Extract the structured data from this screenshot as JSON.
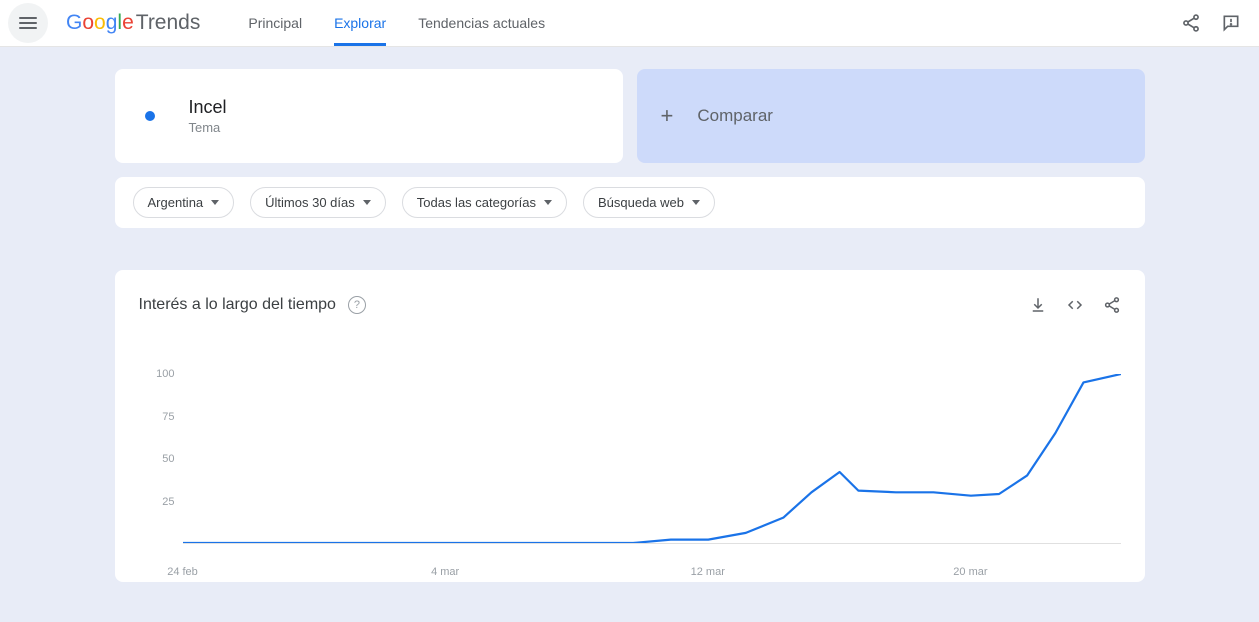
{
  "logo": {
    "brand": "Google",
    "product": "Trends"
  },
  "nav": {
    "items": [
      {
        "label": "Principal"
      },
      {
        "label": "Explorar"
      },
      {
        "label": "Tendencias actuales"
      }
    ],
    "active_index": 1
  },
  "term_card": {
    "title": "Incel",
    "subtitle": "Tema",
    "dot_color": "#1a73e8"
  },
  "compare": {
    "label": "Comparar"
  },
  "filters": [
    {
      "label": "Argentina"
    },
    {
      "label": "Últimos 30 días"
    },
    {
      "label": "Todas las categorías"
    },
    {
      "label": "Búsqueda web"
    }
  ],
  "chart": {
    "type": "line",
    "title": "Interés a lo largo del tiempo",
    "ylim": [
      0,
      100
    ],
    "ytick_step": 25,
    "yticks": [
      25,
      50,
      75,
      100
    ],
    "xlabels": [
      {
        "label": "24 feb",
        "x": 0
      },
      {
        "label": "4 mar",
        "x": 28
      },
      {
        "label": "12 mar",
        "x": 56
      },
      {
        "label": "20 mar",
        "x": 84
      }
    ],
    "x_domain": [
      0,
      100
    ],
    "values": [
      {
        "x": 0,
        "y": 0
      },
      {
        "x": 4,
        "y": 0
      },
      {
        "x": 8,
        "y": 0
      },
      {
        "x": 12,
        "y": 0
      },
      {
        "x": 16,
        "y": 0
      },
      {
        "x": 20,
        "y": 0
      },
      {
        "x": 24,
        "y": 0
      },
      {
        "x": 28,
        "y": 0
      },
      {
        "x": 32,
        "y": 0
      },
      {
        "x": 36,
        "y": 0
      },
      {
        "x": 40,
        "y": 0
      },
      {
        "x": 44,
        "y": 0
      },
      {
        "x": 48,
        "y": 0
      },
      {
        "x": 52,
        "y": 2
      },
      {
        "x": 56,
        "y": 2
      },
      {
        "x": 60,
        "y": 6
      },
      {
        "x": 64,
        "y": 15
      },
      {
        "x": 67,
        "y": 30
      },
      {
        "x": 70,
        "y": 42
      },
      {
        "x": 72,
        "y": 31
      },
      {
        "x": 76,
        "y": 30
      },
      {
        "x": 80,
        "y": 30
      },
      {
        "x": 84,
        "y": 28
      },
      {
        "x": 87,
        "y": 29
      },
      {
        "x": 90,
        "y": 40
      },
      {
        "x": 93,
        "y": 65
      },
      {
        "x": 96,
        "y": 95
      },
      {
        "x": 100,
        "y": 100
      }
    ],
    "line_color": "#1a73e8",
    "line_width": 2.2,
    "background_color": "#ffffff",
    "grid_color": "#e0e0e0",
    "axis_label_color": "#9aa0a6",
    "axis_label_fontsize": 11
  },
  "colors": {
    "page_bg": "#e8ecf7",
    "card_bg": "#ffffff",
    "compare_bg": "#cddafa",
    "accent": "#1a73e8",
    "text_primary": "#202124",
    "text_secondary": "#5f6368"
  }
}
